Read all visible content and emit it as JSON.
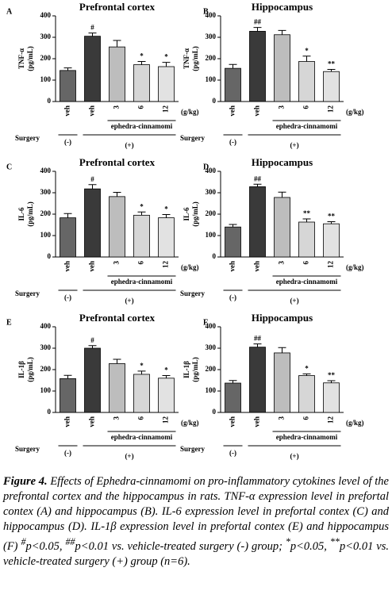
{
  "chart_data": [
    {
      "type": "bar",
      "panel": "A",
      "title": "Prefrontal cortex",
      "ylabel": [
        "TNF-α",
        "(pg/mL)"
      ],
      "categories": [
        "veh",
        "veh",
        "3",
        "6",
        "12"
      ],
      "unit": "(g/kg)",
      "values": [
        145,
        305,
        255,
        172,
        163
      ],
      "errors": [
        12,
        15,
        30,
        15,
        20
      ],
      "sig_labels": [
        null,
        "#",
        null,
        "*",
        "*"
      ],
      "colors": [
        "#666666",
        "#3a3a3a",
        "#bdbdbd",
        "#d6d6d6",
        "#e2e2e2"
      ],
      "ylim": [
        0,
        400
      ],
      "yticks": [
        0,
        100,
        200,
        300,
        400
      ],
      "surgery_label": "Surgery",
      "surgery_groups": [
        "(-)",
        "(+)"
      ],
      "treatment": "ephedra-cinnamomi"
    },
    {
      "type": "bar",
      "panel": "B",
      "title": "Hippocampus",
      "ylabel": [
        "TNF-α",
        "(pg/mL)"
      ],
      "categories": [
        "veh",
        "veh",
        "3",
        "6",
        "12"
      ],
      "unit": "(g/kg)",
      "values": [
        155,
        328,
        312,
        187,
        140
      ],
      "errors": [
        18,
        18,
        20,
        25,
        10
      ],
      "sig_labels": [
        null,
        "##",
        null,
        "*",
        "**"
      ],
      "colors": [
        "#666666",
        "#3a3a3a",
        "#bdbdbd",
        "#d6d6d6",
        "#e2e2e2"
      ],
      "ylim": [
        0,
        400
      ],
      "yticks": [
        0,
        100,
        200,
        300,
        400
      ],
      "surgery_label": "Surgery",
      "surgery_groups": [
        "(-)",
        "(+)"
      ],
      "treatment": "ephedra-cinnamomi"
    },
    {
      "type": "bar",
      "panel": "C",
      "title": "Prefrontal cortex",
      "ylabel": [
        "IL-6",
        "(pg/mL)"
      ],
      "categories": [
        "veh",
        "veh",
        "3",
        "6",
        "12"
      ],
      "unit": "(g/kg)",
      "values": [
        183,
        318,
        282,
        195,
        183
      ],
      "errors": [
        20,
        20,
        20,
        15,
        15
      ],
      "sig_labels": [
        null,
        "#",
        null,
        "*",
        "*"
      ],
      "colors": [
        "#666666",
        "#3a3a3a",
        "#bdbdbd",
        "#d6d6d6",
        "#e2e2e2"
      ],
      "ylim": [
        0,
        400
      ],
      "yticks": [
        0,
        100,
        200,
        300,
        400
      ],
      "surgery_label": "Surgery",
      "surgery_groups": [
        "(-)",
        "(+)"
      ],
      "treatment": "ephedra-cinnamomi"
    },
    {
      "type": "bar",
      "panel": "D",
      "title": "Hippocampus",
      "ylabel": [
        "IL-6",
        "(pg/mL)"
      ],
      "categories": [
        "veh",
        "veh",
        "3",
        "6",
        "12"
      ],
      "unit": "(g/kg)",
      "values": [
        140,
        328,
        278,
        163,
        155
      ],
      "errors": [
        12,
        12,
        25,
        15,
        10
      ],
      "sig_labels": [
        null,
        "##",
        null,
        "**",
        "**"
      ],
      "colors": [
        "#666666",
        "#3a3a3a",
        "#bdbdbd",
        "#d6d6d6",
        "#e2e2e2"
      ],
      "ylim": [
        0,
        400
      ],
      "yticks": [
        0,
        100,
        200,
        300,
        400
      ],
      "surgery_label": "Surgery",
      "surgery_groups": [
        "(-)",
        "(+)"
      ],
      "treatment": "ephedra-cinnamomi"
    },
    {
      "type": "bar",
      "panel": "E",
      "title": "Prefrontal cortex",
      "ylabel": [
        "IL-1β",
        "(pg/mL)"
      ],
      "categories": [
        "veh",
        "veh",
        "3",
        "6",
        "12"
      ],
      "unit": "(g/kg)",
      "values": [
        158,
        300,
        228,
        178,
        160
      ],
      "errors": [
        15,
        12,
        20,
        15,
        12
      ],
      "sig_labels": [
        null,
        "#",
        null,
        "*",
        "*"
      ],
      "colors": [
        "#666666",
        "#3a3a3a",
        "#bdbdbd",
        "#d6d6d6",
        "#e2e2e2"
      ],
      "ylim": [
        0,
        400
      ],
      "yticks": [
        0,
        100,
        200,
        300,
        400
      ],
      "surgery_label": "Surgery",
      "surgery_groups": [
        "(-)",
        "(+)"
      ],
      "treatment": "ephedra-cinnamomi"
    },
    {
      "type": "bar",
      "panel": "F",
      "title": "Hippocampus",
      "ylabel": [
        "IL-1β",
        "(pg/mL)"
      ],
      "categories": [
        "veh",
        "veh",
        "3",
        "6",
        "12"
      ],
      "unit": "(g/kg)",
      "values": [
        137,
        305,
        278,
        172,
        138
      ],
      "errors": [
        12,
        15,
        25,
        8,
        10
      ],
      "sig_labels": [
        null,
        "##",
        null,
        "*",
        "**"
      ],
      "colors": [
        "#666666",
        "#3a3a3a",
        "#bdbdbd",
        "#d6d6d6",
        "#e2e2e2"
      ],
      "ylim": [
        0,
        400
      ],
      "yticks": [
        0,
        100,
        200,
        300,
        400
      ],
      "surgery_label": "Surgery",
      "surgery_groups": [
        "(-)",
        "(+)"
      ],
      "treatment": "ephedra-cinnamomi"
    }
  ],
  "caption": {
    "label": "Figure 4.",
    "text": " Effects of Ephedra-cinnamomi on pro-inflammatory cytokines level of the prefrontal cortex and the hippocampus in rats. TNF-α expression level in prefortal contex (A) and hippocampus (B). IL-6 expression level in prefortal contex (C) and hippocampus (D). IL-1β expression level in prefortal contex (E) and hippocampus (F) ",
    "notes": [
      {
        "sup": "#",
        "text": "p<0.05, "
      },
      {
        "sup": "##",
        "text": "p<0.01 vs. vehicle-treated surgery (-) group; "
      },
      {
        "sup": "*",
        "text": "p<0.05, "
      },
      {
        "sup": "**",
        "text": "p<0.01 vs. vehicle-treated surgery (+) group (n=6)."
      }
    ]
  }
}
